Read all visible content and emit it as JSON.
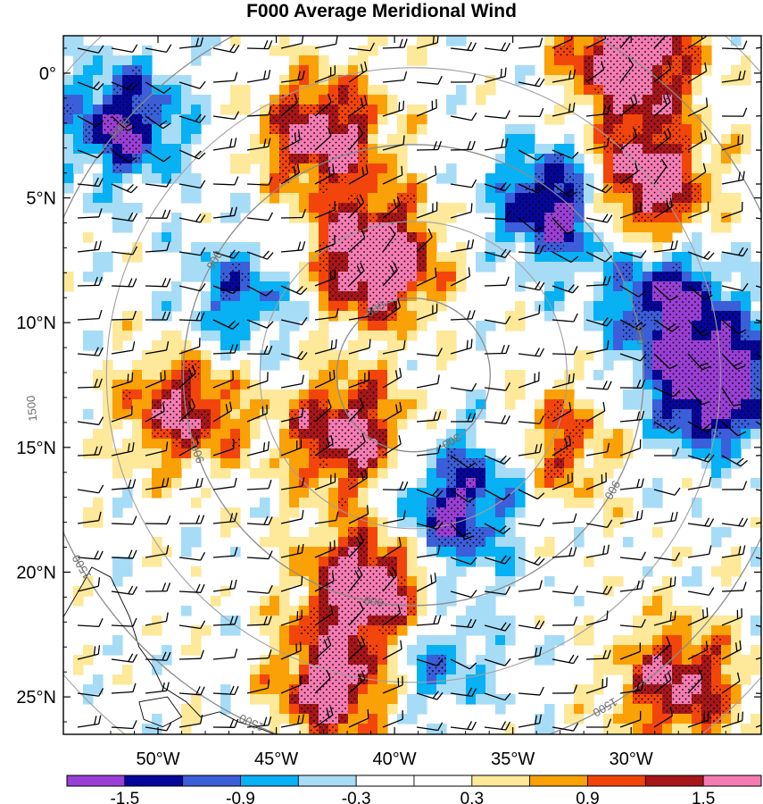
{
  "title": "F000 Average Meridional Wind",
  "lat_labels": [
    "25°N",
    "20°N",
    "15°N",
    "10°N",
    "5°N",
    "0°"
  ],
  "lon_labels": [
    "50°W",
    "45°W",
    "40°W",
    "35°W",
    "30°W"
  ],
  "contour_labels": [
    "1500",
    "1500",
    "1500",
    "1500",
    "1500",
    "1500",
    "1500",
    "900",
    "900",
    "900",
    "900",
    "900",
    "300",
    "300"
  ],
  "colorbar": {
    "colors": [
      "#9a3fd6",
      "#06069b",
      "#3b5ed9",
      "#07b1f3",
      "#a7dcf7",
      "#ffffff",
      "#ffffff",
      "#fee89a",
      "#f9a106",
      "#f2450b",
      "#a8161a",
      "#f57cb3"
    ],
    "tick_labels": [
      "-1.5",
      "-0.9",
      "-0.3",
      "0.3",
      "0.9",
      "1.5"
    ]
  },
  "chart_data": {
    "type": "heatmap",
    "title": "F000 Average Meridional Wind",
    "x_axis": {
      "label": "longitude",
      "range": [
        -54,
        -24.5
      ],
      "ticks": [
        -50,
        -45,
        -40,
        -35,
        -30
      ],
      "tick_labels": [
        "50°W",
        "45°W",
        "40°W",
        "35°W",
        "30°W"
      ]
    },
    "y_axis": {
      "label": "latitude",
      "range": [
        -1.5,
        26.5
      ],
      "ticks": [
        0,
        5,
        10,
        15,
        20,
        25
      ],
      "tick_labels": [
        "0°",
        "5°N",
        "10°N",
        "15°N",
        "20°N",
        "25°N"
      ]
    },
    "levels": [
      -1.8,
      -1.5,
      -1.2,
      -0.9,
      -0.6,
      -0.3,
      0,
      0.3,
      0.6,
      0.9,
      1.2,
      1.5,
      1.8
    ],
    "colorbar_labels": [
      "-1.5",
      "-0.9",
      "-0.3",
      "0.3",
      "0.9",
      "1.5"
    ],
    "range_rings_km": [
      300,
      900,
      1500
    ],
    "range_ring_center": {
      "lon": -39.2,
      "lat": 12.9
    },
    "positive_features": [
      {
        "lon": -40.8,
        "lat": 17.5,
        "peak": 1.8
      },
      {
        "lon": -43.0,
        "lat": 22.5,
        "peak": 1.4
      },
      {
        "lon": -29.5,
        "lat": 20.5,
        "peak": 1.8
      },
      {
        "lon": -30.0,
        "lat": 25.5,
        "peak": 1.7
      },
      {
        "lon": -41.0,
        "lat": 4.5,
        "peak": 1.8
      },
      {
        "lon": -42.5,
        "lat": 0.5,
        "peak": 1.4
      },
      {
        "lon": -42.0,
        "lat": 10.5,
        "peak": 1.4
      },
      {
        "lon": -28.0,
        "lat": 0.5,
        "peak": 1.3
      },
      {
        "lon": -49.0,
        "lat": 11.5,
        "peak": 1.2
      },
      {
        "lon": -33.5,
        "lat": 10.0,
        "peak": 1.2
      }
    ],
    "negative_features": [
      {
        "lon": -26.5,
        "lat": 12.5,
        "peak": -1.8
      },
      {
        "lon": -33.0,
        "lat": 19.8,
        "peak": -1.5
      },
      {
        "lon": -28.5,
        "lat": 16.0,
        "peak": -1.2
      },
      {
        "lon": -38.0,
        "lat": 7.0,
        "peak": -1.1
      },
      {
        "lon": -35.5,
        "lat": 9.5,
        "peak": -0.9
      },
      {
        "lon": -51.5,
        "lat": 23.0,
        "peak": -1.2
      },
      {
        "lon": -46.5,
        "lat": 16.0,
        "peak": -0.8
      },
      {
        "lon": -38.5,
        "lat": 1.5,
        "peak": -0.8
      }
    ],
    "wind_barbs": "yes",
    "stippling": "yes",
    "coastline": "South America (lower left)"
  }
}
